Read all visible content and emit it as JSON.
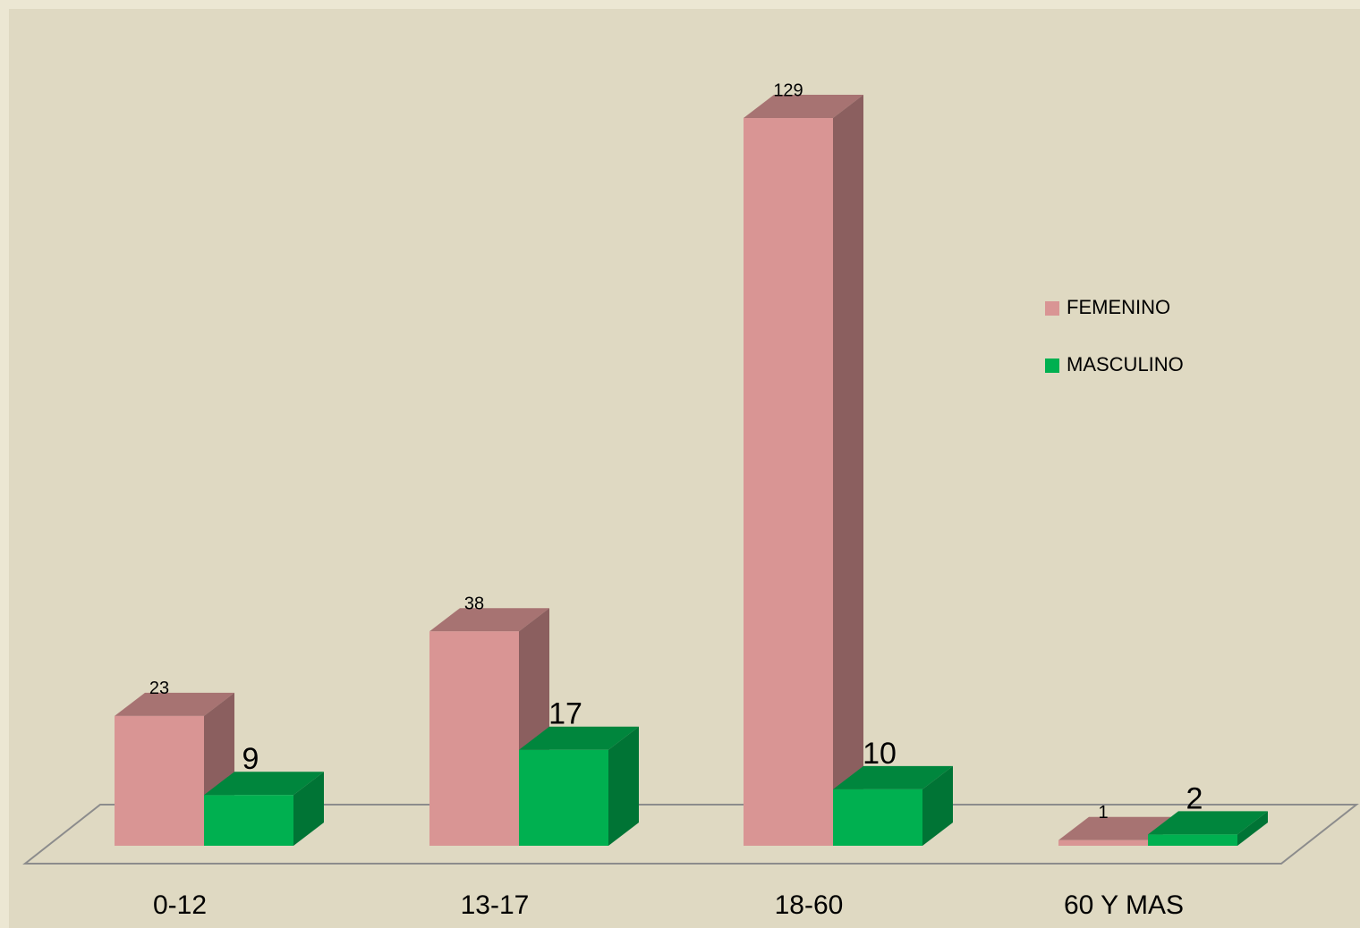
{
  "chart_data": {
    "type": "bar3d",
    "categories": [
      "0-12",
      "13-17",
      "18-60",
      "60 Y MAS"
    ],
    "series": [
      {
        "name": "FEMENINO",
        "color": "#d99594",
        "values": [
          23,
          38,
          129,
          1
        ]
      },
      {
        "name": "MASCULINO",
        "color": "#00b050",
        "values": [
          9,
          17,
          10,
          2
        ]
      }
    ],
    "legend": "right"
  }
}
